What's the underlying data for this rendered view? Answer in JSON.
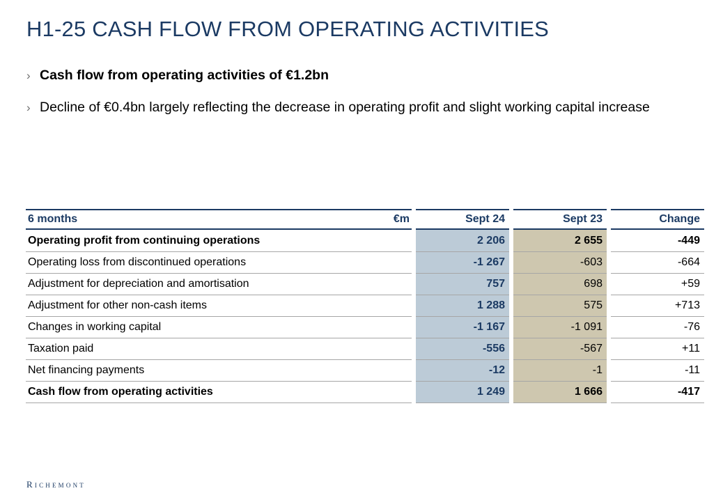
{
  "slide": {
    "title": "H1-25 CASH FLOW FROM OPERATING ACTIVITIES",
    "bullets": [
      {
        "text": "Cash flow from operating activities of €1.2bn",
        "bold": true
      },
      {
        "text": "Decline of €0.4bn largely reflecting the decrease in operating profit and slight working capital increase",
        "bold": false
      }
    ],
    "bullet_icon": "chevron-right-icon"
  },
  "table": {
    "headers": {
      "label": "6 months",
      "unit": "€m",
      "col1": "Sept 24",
      "col2": "Sept 23",
      "col3": "Change"
    },
    "rows": [
      {
        "label": "Operating profit from continuing operations",
        "sept24": "2 206",
        "sept23": "2 655",
        "change": "-449",
        "bold": true
      },
      {
        "label": "Operating loss from discontinued operations",
        "sept24": "-1 267",
        "sept23": "-603",
        "change": "-664",
        "bold": false
      },
      {
        "label": "Adjustment for depreciation and amortisation",
        "sept24": "757",
        "sept23": "698",
        "change": "+59",
        "bold": false
      },
      {
        "label": "Adjustment for other non-cash items",
        "sept24": "1 288",
        "sept23": "575",
        "change": "+713",
        "bold": false
      },
      {
        "label": "Changes in working capital",
        "sept24": "-1 167",
        "sept23": "-1 091",
        "change": "-76",
        "bold": false
      },
      {
        "label": "Taxation paid",
        "sept24": "-556",
        "sept23": "-567",
        "change": "+11",
        "bold": false
      },
      {
        "label": "Net financing payments",
        "sept24": "-12",
        "sept23": "-1",
        "change": "-11",
        "bold": false
      },
      {
        "label": "Cash flow from operating activities",
        "sept24": "1 249",
        "sept23": "1 666",
        "change": "-417",
        "bold": true
      }
    ],
    "colors": {
      "header_navy": "#1b3a63",
      "sept24_fill": "#bccbd7",
      "sept23_fill": "#cec7af",
      "rule_grey": "#a6a6a6"
    }
  },
  "footer": {
    "logo": "Richemont"
  }
}
